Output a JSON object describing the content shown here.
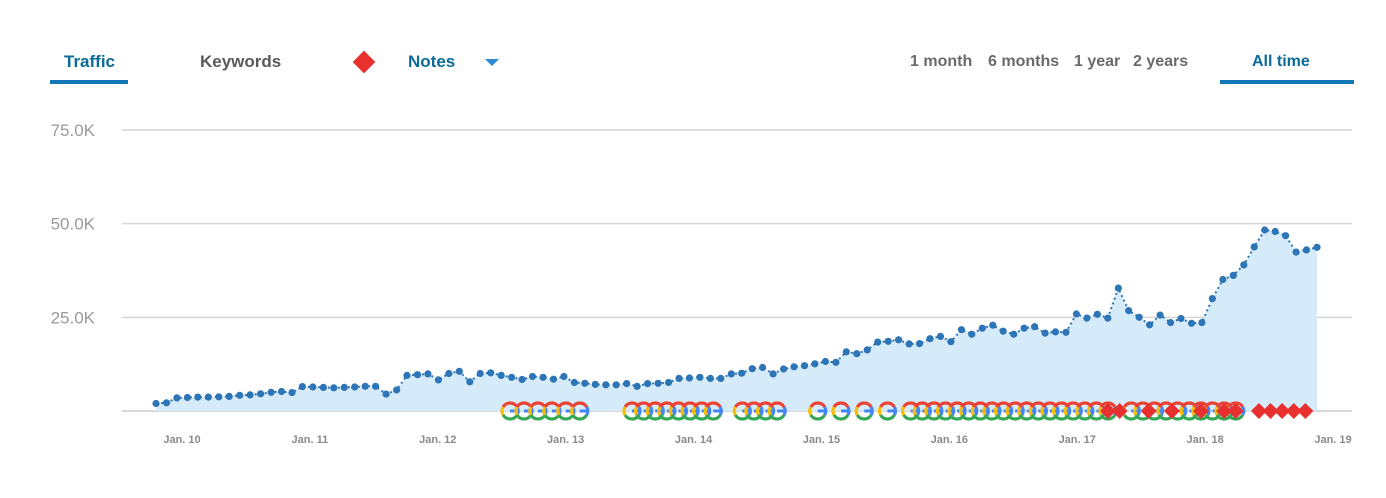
{
  "tabs": {
    "traffic": "Traffic",
    "keywords": "Keywords",
    "notes": "Notes"
  },
  "ranges": [
    "1 month",
    "6 months",
    "1 year",
    "2 years",
    "All time"
  ],
  "colors": {
    "accent": "#1478b8",
    "line": "#2d75b6",
    "area": "#d6ebfa",
    "note": "#e8312f"
  },
  "chart_data": {
    "type": "area",
    "x_tick_labels": [
      "Jan. 10",
      "Jan. 11",
      "Jan. 12",
      "Jan. 13",
      "Jan. 14",
      "Jan. 15",
      "Jan. 16",
      "Jan. 17",
      "Jan. 18",
      "Jan. 19"
    ],
    "y_tick_labels": [
      "25.0K",
      "50.0K",
      "75.0K"
    ],
    "ylim": [
      0,
      75000
    ],
    "grid": true,
    "series": [
      {
        "x_start": "2010-01",
        "x_step": "month",
        "values": [
          2000,
          2200,
          3500,
          3600,
          3700,
          3700,
          3800,
          3900,
          4200,
          4300,
          4600,
          5000,
          5200,
          4900,
          6500,
          6400,
          6300,
          6200,
          6300,
          6400,
          6600,
          6600,
          4500,
          5600,
          9500,
          9700,
          9900,
          8300,
          10000,
          10600,
          7800,
          10000,
          10200,
          9500,
          9000,
          8400,
          9200,
          9000,
          8500,
          9200,
          7600,
          7400,
          7100,
          7000,
          7000,
          7300,
          6600,
          7300,
          7400,
          7600,
          8700,
          8800,
          9000,
          8700,
          8700,
          9900,
          10100,
          11300,
          11600,
          9900,
          11200,
          11800,
          12100,
          12600,
          13200,
          13000,
          15800,
          15300,
          16300,
          18400,
          18600,
          19000,
          17900,
          18000,
          19300,
          19900,
          18500,
          21700,
          20500,
          22100,
          22900,
          21300,
          20500,
          22100,
          22500,
          20800,
          21100,
          21000,
          25900,
          24800,
          25800,
          24800,
          32800,
          26800,
          25000,
          23000,
          25600,
          23600,
          24700,
          23400,
          23600,
          30000,
          35100,
          36200,
          39000,
          43800,
          48300,
          47900,
          46800,
          42400,
          43000,
          43700
        ]
      }
    ],
    "notes": {
      "google_update_positions": [
        0.305,
        0.317,
        0.329,
        0.341,
        0.353,
        0.365,
        0.41,
        0.42,
        0.43,
        0.44,
        0.45,
        0.46,
        0.47,
        0.48,
        0.505,
        0.515,
        0.525,
        0.535,
        0.57,
        0.59,
        0.61,
        0.63,
        0.65,
        0.66,
        0.67,
        0.68,
        0.69,
        0.7,
        0.71,
        0.72,
        0.73,
        0.74,
        0.75,
        0.76,
        0.77,
        0.78,
        0.79,
        0.8,
        0.81,
        0.82,
        0.84,
        0.85,
        0.86,
        0.87,
        0.88,
        0.89,
        0.9,
        0.91,
        0.92,
        0.93
      ],
      "note_marker_positions": [
        0.82,
        0.83,
        0.855,
        0.875,
        0.9,
        0.92,
        0.93,
        0.95,
        0.96,
        0.97,
        0.98,
        0.99
      ]
    }
  }
}
